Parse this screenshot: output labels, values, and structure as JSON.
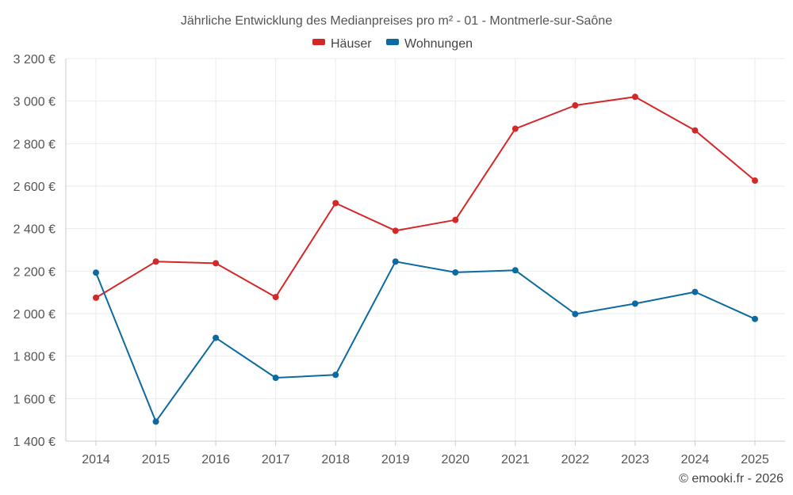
{
  "chart_data": {
    "type": "line",
    "title": "Jährliche Entwicklung des Medianpreises pro m² - 01 - Montmerle-sur-Saône",
    "categories": [
      "2014",
      "2015",
      "2016",
      "2017",
      "2018",
      "2019",
      "2020",
      "2021",
      "2022",
      "2023",
      "2024",
      "2025"
    ],
    "series": [
      {
        "name": "Häuser",
        "color": "#d62728",
        "values": [
          2075,
          2245,
          2237,
          2078,
          2520,
          2390,
          2441,
          2870,
          2980,
          3020,
          2862,
          2626
        ]
      },
      {
        "name": "Wohnungen",
        "color": "#0b6aa0",
        "values": [
          2193,
          1492,
          1886,
          1698,
          1712,
          2245,
          2194,
          2204,
          1998,
          2047,
          2102,
          1975
        ]
      }
    ],
    "ylim": [
      1400,
      3200
    ],
    "yticks": [
      1400,
      1600,
      1800,
      2000,
      2200,
      2400,
      2600,
      2800,
      3000,
      3200
    ],
    "ytick_labels": [
      "1 400 €",
      "1 600 €",
      "1 800 €",
      "2 000 €",
      "2 200 €",
      "2 400 €",
      "2 600 €",
      "2 800 €",
      "3 000 €",
      "3 200 €"
    ],
    "xlabel": "",
    "ylabel": "",
    "legend_position": "top-center",
    "grid": true
  },
  "credit": "© emooki.fr - 2026"
}
